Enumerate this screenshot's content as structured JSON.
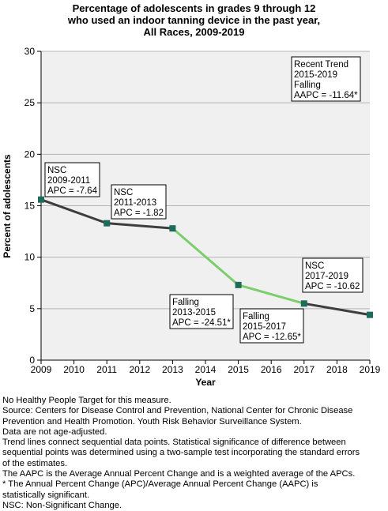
{
  "chart_data": {
    "type": "line",
    "title_lines": [
      "Percentage of adolescents in grades 9 through 12",
      "who used an indoor tanning device in the past year,",
      "All Races,  2009-2019"
    ],
    "xlabel": "Year",
    "ylabel": "Percent of adolescents",
    "x_ticks": [
      "2009",
      "2010",
      "2011",
      "2012",
      "2013",
      "2014",
      "2015",
      "2016",
      "2017",
      "2018",
      "2019"
    ],
    "y_ticks": [
      "0",
      "5",
      "10",
      "15",
      "20",
      "25",
      "30"
    ],
    "xlim": [
      2009,
      2019
    ],
    "ylim": [
      0,
      30
    ],
    "grid": "horizontal",
    "points": [
      {
        "x": 2009,
        "y": 15.6
      },
      {
        "x": 2011,
        "y": 13.3
      },
      {
        "x": 2013,
        "y": 12.8
      },
      {
        "x": 2015,
        "y": 7.3
      },
      {
        "x": 2017,
        "y": 5.5
      },
      {
        "x": 2019,
        "y": 4.4
      }
    ],
    "segments": [
      {
        "from": 2009,
        "to": 2011,
        "color": "#3d3d3d"
      },
      {
        "from": 2011,
        "to": 2013,
        "color": "#3d3d3d"
      },
      {
        "from": 2013,
        "to": 2015,
        "color": "#7ccd6b"
      },
      {
        "from": 2015,
        "to": 2017,
        "color": "#7ccd6b"
      },
      {
        "from": 2017,
        "to": 2019,
        "color": "#3d3d3d"
      }
    ],
    "marker_color": "#1e6b5c",
    "annotations": [
      {
        "lines": [
          "NSC",
          "2009-2011",
          "APC = -7.64"
        ]
      },
      {
        "lines": [
          "NSC",
          "2011-2013",
          "APC = -1.82"
        ]
      },
      {
        "lines": [
          "Falling",
          "2013-2015",
          "APC = -24.51*"
        ]
      },
      {
        "lines": [
          "Falling",
          "2015-2017",
          "APC = -12.65*"
        ]
      },
      {
        "lines": [
          "NSC",
          "2017-2019",
          "APC = -10.62"
        ]
      },
      {
        "lines": [
          "Recent Trend",
          "2015-2019",
          "Falling",
          "AAPC = -11.64*"
        ]
      }
    ]
  },
  "footnotes": [
    "No Healthy People Target for this measure.",
    "Source: Centers for Disease Control and Prevention, National Center for Chronic Disease",
    "Prevention and Health Promotion. Youth Risk Behavior Surveillance System.",
    "Data are not age-adjusted.",
    "Trend lines connect sequential data points. Statistical significance of difference between",
    "sequential points was determined using a two-sample test incorporating the standard errors",
    "of the estimates.",
    "The AAPC is the Average Annual Percent Change and is a weighted average of the APCs.",
    "* The Annual Percent Change (APC)/Average Annual Percent Change (AAPC) is",
    "statistically significant.",
    "NSC: Non-Significant Change."
  ]
}
